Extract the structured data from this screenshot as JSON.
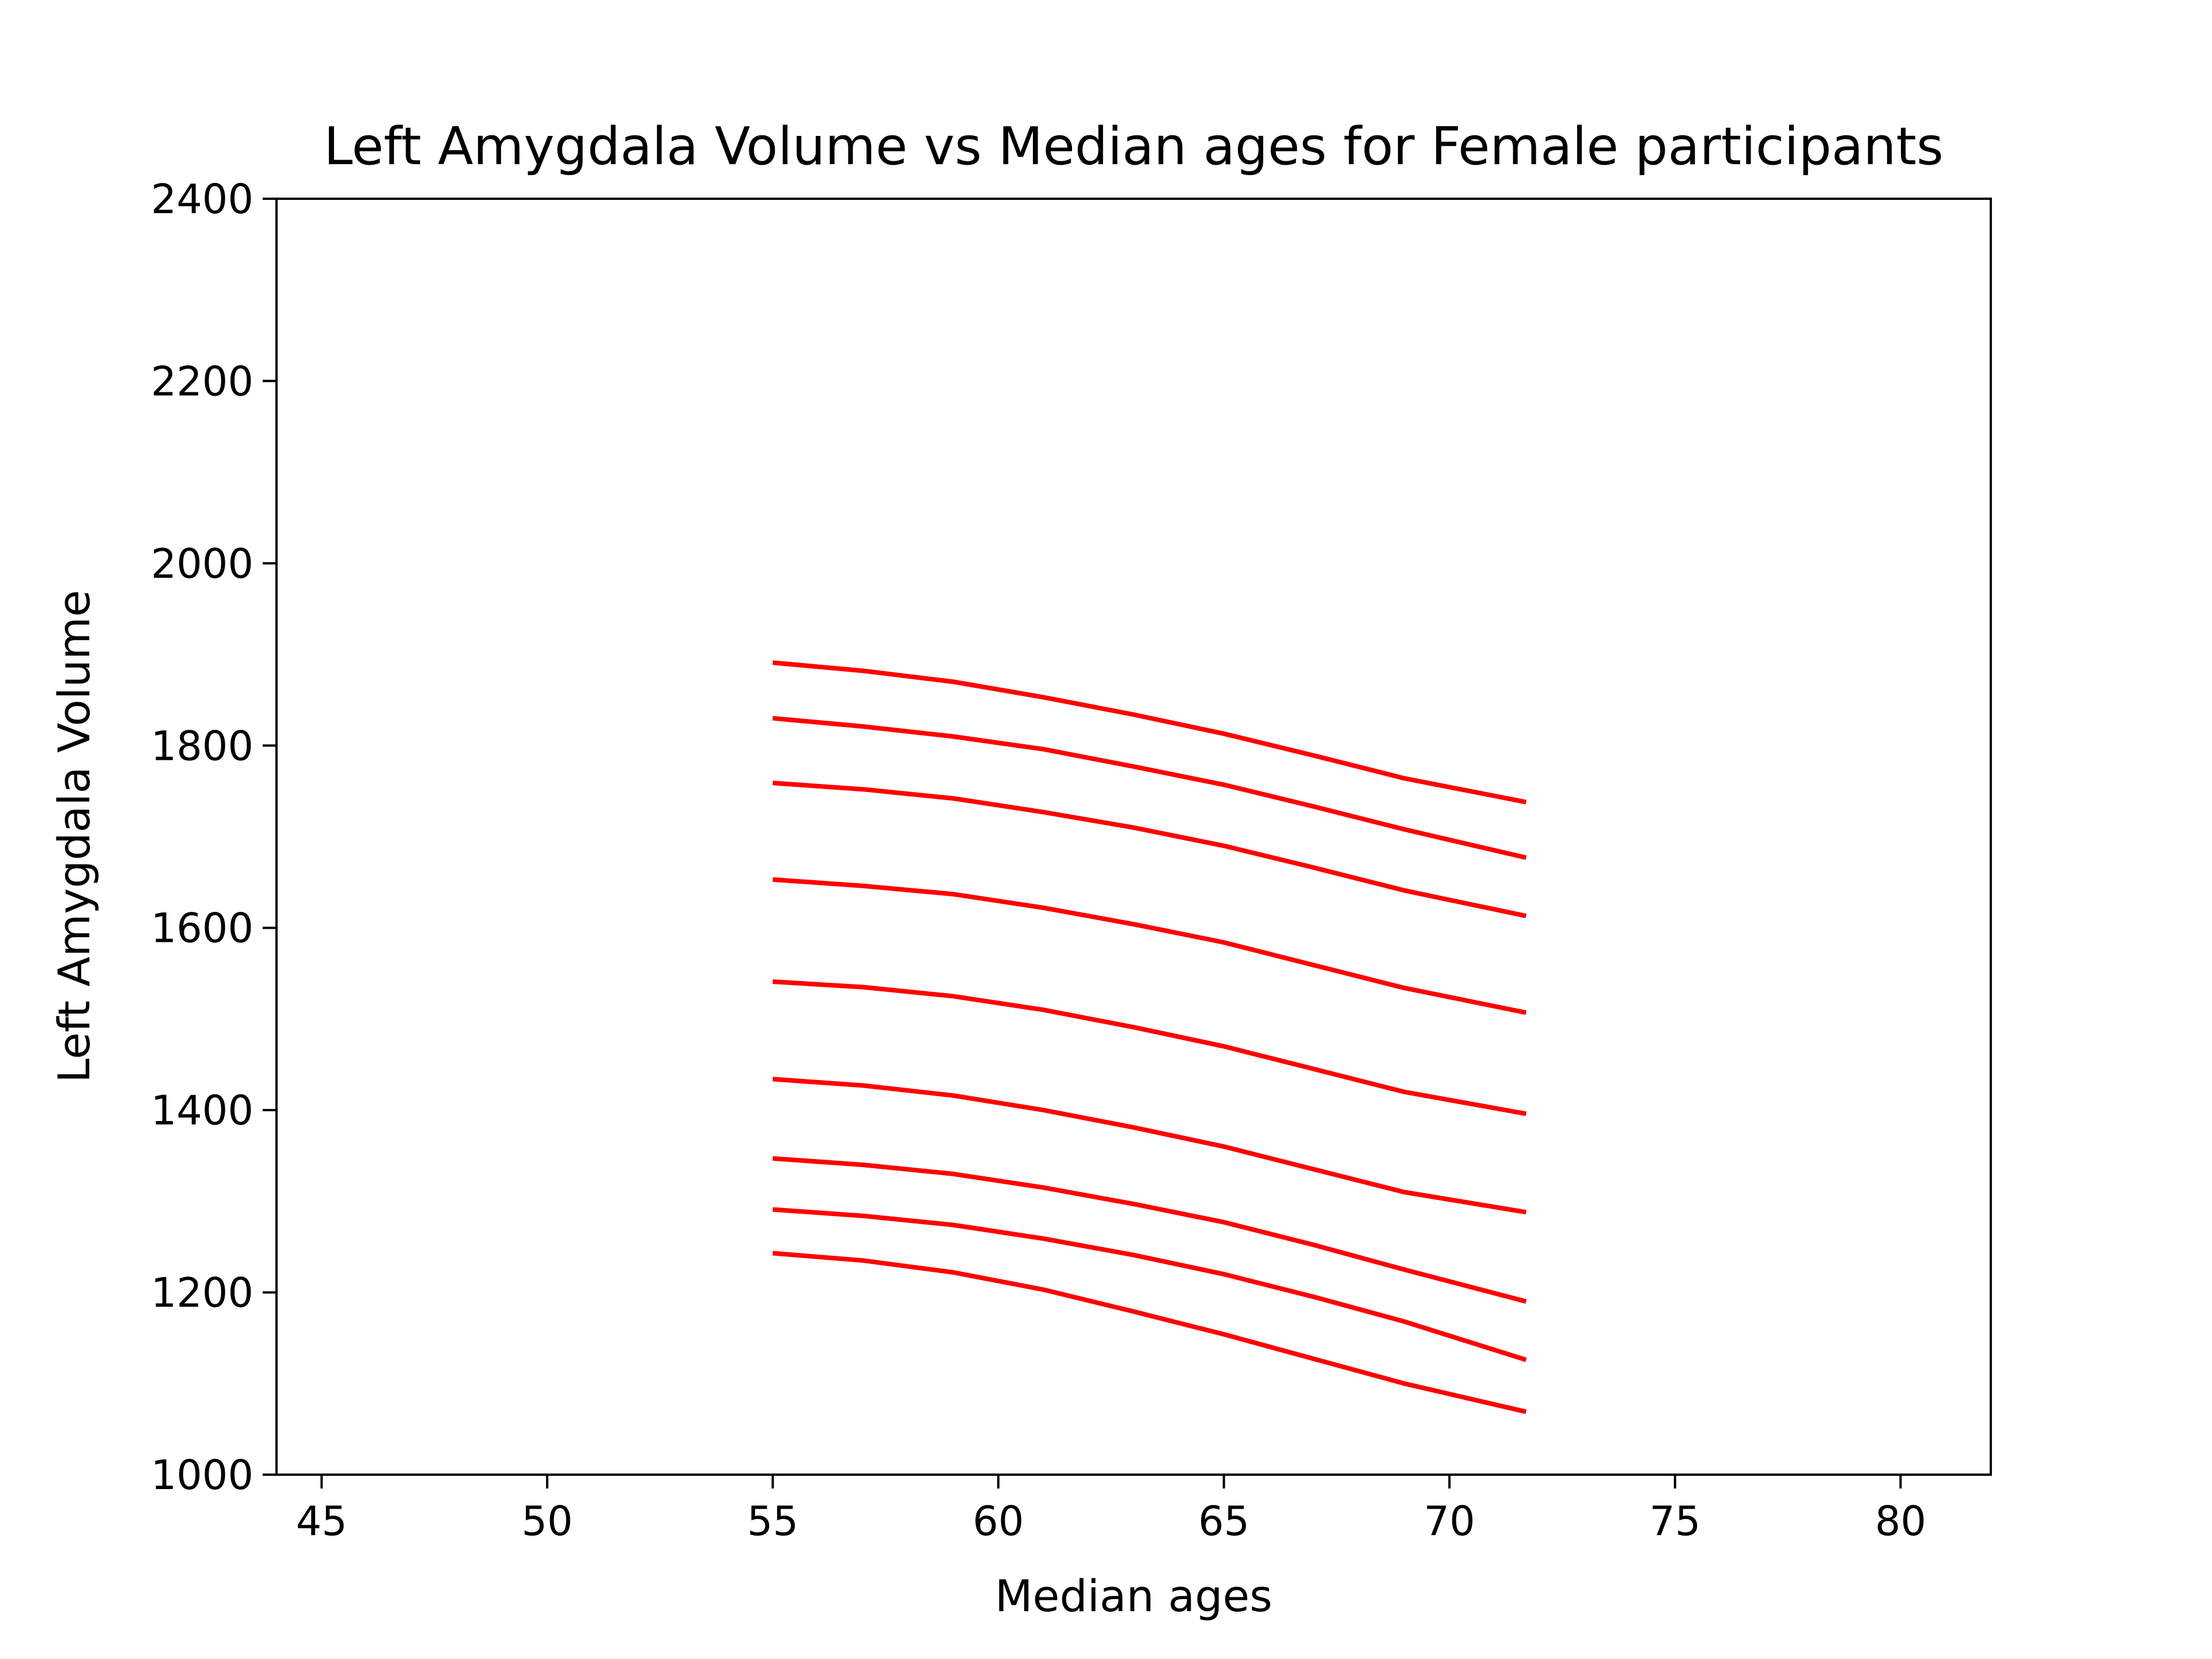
{
  "chart_data": {
    "type": "line",
    "title": "Left Amygdala Volume vs Median ages for Female participants",
    "xlabel": "Median ages",
    "ylabel": "Left Amygdala Volume",
    "xlim": [
      44,
      82
    ],
    "ylim": [
      1000,
      2400
    ],
    "xticks": [
      45,
      50,
      55,
      60,
      65,
      70,
      75,
      80
    ],
    "yticks": [
      1000,
      1200,
      1400,
      1600,
      1800,
      2000,
      2200,
      2400
    ],
    "grid": false,
    "legend": "none",
    "line_color": "#ff0000",
    "x": [
      55,
      57,
      59,
      61,
      63,
      65,
      67,
      69,
      71.7
    ],
    "series": [
      {
        "values": [
          1891,
          1882,
          1870,
          1853,
          1834,
          1813,
          1789,
          1764,
          1738
        ]
      },
      {
        "values": [
          1830,
          1821,
          1810,
          1796,
          1777,
          1757,
          1733,
          1708,
          1677
        ]
      },
      {
        "values": [
          1759,
          1752,
          1742,
          1727,
          1710,
          1690,
          1666,
          1641,
          1613
        ]
      },
      {
        "values": [
          1653,
          1646,
          1637,
          1622,
          1604,
          1584,
          1559,
          1534,
          1507
        ]
      },
      {
        "values": [
          1541,
          1535,
          1525,
          1510,
          1491,
          1470,
          1445,
          1420,
          1396
        ]
      },
      {
        "values": [
          1434,
          1427,
          1416,
          1400,
          1381,
          1360,
          1335,
          1310,
          1288
        ]
      },
      {
        "values": [
          1347,
          1340,
          1330,
          1315,
          1297,
          1277,
          1252,
          1225,
          1190
        ]
      },
      {
        "values": [
          1291,
          1284,
          1274,
          1259,
          1241,
          1220,
          1195,
          1168,
          1126
        ]
      },
      {
        "values": [
          1243,
          1235,
          1222,
          1203,
          1179,
          1154,
          1127,
          1100,
          1069
        ]
      }
    ]
  }
}
